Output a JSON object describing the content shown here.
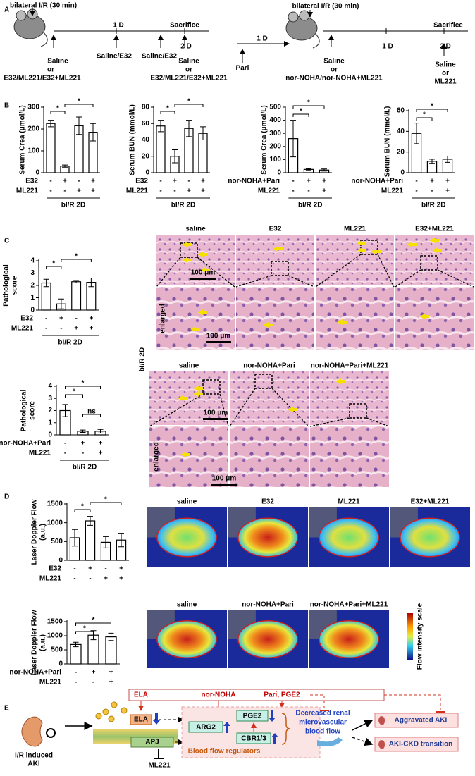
{
  "panel_labels": [
    "A",
    "B",
    "C",
    "D",
    "E"
  ],
  "panel_a": {
    "left": {
      "injury": "bilateral I/R (30 min)",
      "day1": "1 D",
      "day2": "2 D",
      "sacrifice": "Sacrifice",
      "t0": [
        "Saline",
        "or",
        "E32/ML221/E32+ML221"
      ],
      "t1": "Saline/E32",
      "t2": "Saline/E32",
      "t3": [
        "Saline",
        "or",
        "E32/ML221/E32+ML221"
      ]
    },
    "right": {
      "pre": "Pari",
      "pre_interval": "1 D",
      "injury": "bilateral I/R (30 min)",
      "day1": "1 D",
      "day2": "2 D",
      "sacrifice": "Sacrifice",
      "t0": [
        "Saline",
        "or",
        "nor-NOHA/nor-NOHA+ML221"
      ],
      "t2": [
        "Saline",
        "or",
        "ML221"
      ]
    }
  },
  "panel_b": {
    "charts": [
      {
        "type": "bar",
        "ylabel": [
          "Serum Crea (μmol/L)"
        ],
        "ylim": [
          0,
          300
        ],
        "yticks": [
          0,
          100,
          200,
          300
        ],
        "values": [
          225,
          30,
          215,
          185
        ],
        "errors": [
          15,
          5,
          40,
          40
        ],
        "groups": [
          {
            "name": "E32",
            "signs": [
              "-",
              "+",
              "-",
              "+"
            ]
          },
          {
            "name": "ML221",
            "signs": [
              "-",
              "-",
              "+",
              "+"
            ]
          }
        ],
        "xlabel": "bI/R 2D",
        "significance": [
          "*",
          "*"
        ]
      },
      {
        "type": "bar",
        "ylabel": [
          "Serum BUN (mmol/L)"
        ],
        "ylim": [
          0,
          80
        ],
        "yticks": [
          0,
          20,
          40,
          60,
          80
        ],
        "values": [
          57,
          20,
          54,
          48
        ],
        "errors": [
          7,
          8,
          10,
          8
        ],
        "groups": [
          {
            "name": "E32",
            "signs": [
              "-",
              "+",
              "-",
              "+"
            ]
          },
          {
            "name": "ML221",
            "signs": [
              "-",
              "-",
              "+",
              "+"
            ]
          }
        ],
        "xlabel": "bI/R 2D",
        "significance": [
          "*",
          "*"
        ]
      },
      {
        "type": "bar",
        "ylabel": [
          "Serum Crea (μmol/L)"
        ],
        "ylim": [
          0,
          500
        ],
        "yticks": [
          0,
          100,
          200,
          300,
          400,
          500
        ],
        "values": [
          260,
          25,
          20
        ],
        "errors": [
          140,
          5,
          8
        ],
        "groups": [
          {
            "name": "nor-NOHA+Pari",
            "signs": [
              "-",
              "+",
              "+"
            ]
          },
          {
            "name": "ML221",
            "signs": [
              "-",
              "-",
              "+"
            ]
          }
        ],
        "xlabel": "bI/R 2D",
        "significance": [
          "*",
          "*"
        ]
      },
      {
        "type": "bar",
        "ylabel": [
          "Serum BUN (mmol/L)"
        ],
        "ylim": [
          0,
          60
        ],
        "yticks": [
          0,
          20,
          40,
          60
        ],
        "values": [
          38,
          11,
          13
        ],
        "errors": [
          10,
          2,
          3
        ],
        "groups": [
          {
            "name": "nor-NOHA+Pari",
            "signs": [
              "-",
              "+",
              "+"
            ]
          },
          {
            "name": "ML221",
            "signs": [
              "-",
              "-",
              "+"
            ]
          }
        ],
        "xlabel": "bI/R 2D",
        "significance": [
          "*",
          "*"
        ]
      }
    ]
  },
  "panel_c": {
    "charts": [
      {
        "type": "bar",
        "ylabel": [
          "Pathological",
          "score"
        ],
        "ylim": [
          0,
          4
        ],
        "yticks": [
          0,
          1,
          2,
          3,
          4
        ],
        "values": [
          2.2,
          0.5,
          2.3,
          2.25
        ],
        "errors": [
          0.3,
          0.4,
          0.1,
          0.35
        ],
        "groups": [
          {
            "name": "E32",
            "signs": [
              "-",
              "+",
              "-",
              "+"
            ]
          },
          {
            "name": "ML221",
            "signs": [
              "-",
              "-",
              "+",
              "+"
            ]
          }
        ],
        "xlabel": "bI/R 2D",
        "significance": [
          "*",
          "*"
        ]
      },
      {
        "type": "bar",
        "ylabel": [
          "Pathological",
          "score"
        ],
        "ylim": [
          0,
          4
        ],
        "yticks": [
          0,
          1,
          2,
          3,
          4
        ],
        "values": [
          2.0,
          0.3,
          0.3
        ],
        "errors": [
          0.5,
          0.1,
          0.15
        ],
        "groups": [
          {
            "name": "nor-NOHA+Pari",
            "signs": [
              "-",
              "+",
              "+"
            ]
          },
          {
            "name": "ML221",
            "signs": [
              "-",
              "-",
              "+"
            ]
          }
        ],
        "xlabel": "bI/R 2D",
        "significance": [
          "*",
          "*",
          "ns"
        ]
      }
    ],
    "side_label": "bI/R 2D",
    "row1_labels": [
      "saline",
      "E32",
      "ML221",
      "E32+ML221"
    ],
    "row2_labels": [
      "saline",
      "nor-NOHA+Pari",
      "nor-NOHA+Pari+ML221"
    ],
    "enlarged": "enlarged",
    "scale_bar": "100 μm"
  },
  "panel_d": {
    "charts": [
      {
        "type": "bar",
        "ylabel": [
          "Laser Doppler Flow",
          "(a.u.)"
        ],
        "ylim": [
          0,
          1500
        ],
        "yticks": [
          0,
          500,
          1000,
          1500
        ],
        "values": [
          600,
          1050,
          480,
          540
        ],
        "errors": [
          220,
          120,
          150,
          180
        ],
        "groups": [
          {
            "name": "E32",
            "signs": [
              "-",
              "+",
              "-",
              "+"
            ]
          },
          {
            "name": "ML221",
            "signs": [
              "-",
              "-",
              "+",
              "+"
            ]
          }
        ],
        "significance": [
          "*",
          "*"
        ]
      },
      {
        "type": "bar",
        "ylabel": [
          "Laser Doppler Flow",
          "(a.u.)"
        ],
        "ylim": [
          0,
          1500
        ],
        "yticks": [
          0,
          500,
          1000,
          1500
        ],
        "values": [
          690,
          1020,
          960
        ],
        "errors": [
          80,
          160,
          130
        ],
        "groups": [
          {
            "name": "nor-NOHA+Pari",
            "signs": [
              "-",
              "+",
              "+"
            ]
          },
          {
            "name": "ML221",
            "signs": [
              "-",
              "-",
              "+"
            ]
          }
        ],
        "significance": [
          "*",
          "*"
        ]
      }
    ],
    "row1_labels": [
      "saline",
      "E32",
      "ML221",
      "E32+ML221"
    ],
    "row2_labels": [
      "saline",
      "nor-NOHA+Pari",
      "nor-NOHA+Pari+ML221"
    ],
    "colorbar_label": "Flow intensity scale"
  },
  "panel_e": {
    "cause": [
      "I/R induced",
      "AKI"
    ],
    "top_labels": [
      "ELA",
      "nor-NOHA",
      "Pari, PGE2"
    ],
    "ligand": "ELA",
    "receptor": "APJ",
    "antagonist": "ML221",
    "regulators": [
      "ARG2",
      "PGE2",
      "CBR1/3"
    ],
    "regulators_title": "Blood flow regulators",
    "effect": [
      "Decreased renal",
      "microvascular",
      "blood flow"
    ],
    "outcomes": [
      "Aggravated AKI",
      "AKI-CKD transition"
    ]
  }
}
